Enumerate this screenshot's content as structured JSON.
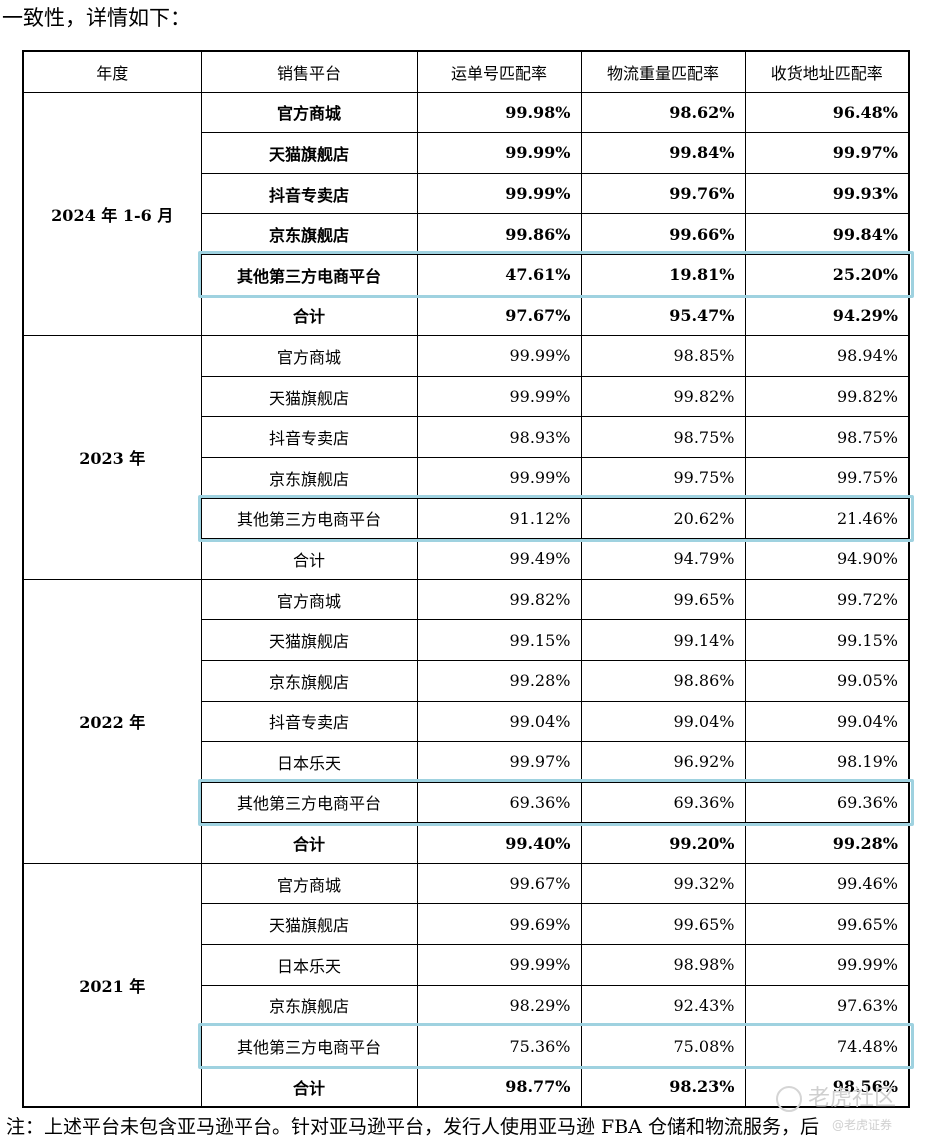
{
  "intro_text": "一致性，详情如下：",
  "headers": [
    "年度",
    "销售平台",
    "运单号匹配率",
    "物流重量匹配率",
    "收货地址匹配率"
  ],
  "groups": [
    {
      "year": "2024 年 1-6 月",
      "bold_all": true,
      "rows": [
        {
          "platform": "官方商城",
          "values": [
            "99.98%",
            "98.62%",
            "96.48%"
          ],
          "bold": true
        },
        {
          "platform": "天猫旗舰店",
          "values": [
            "99.99%",
            "99.84%",
            "99.97%"
          ],
          "bold": true
        },
        {
          "platform": "抖音专卖店",
          "values": [
            "99.99%",
            "99.76%",
            "99.93%"
          ],
          "bold": true
        },
        {
          "platform": "京东旗舰店",
          "values": [
            "99.86%",
            "99.66%",
            "99.84%"
          ],
          "bold": true
        },
        {
          "platform": "其他第三方电商平台",
          "values": [
            "47.61%",
            "19.81%",
            "25.20%"
          ],
          "bold": true,
          "highlight": true
        },
        {
          "platform": "合计",
          "values": [
            "97.67%",
            "95.47%",
            "94.29%"
          ],
          "bold": true
        }
      ]
    },
    {
      "year": "2023 年",
      "rows": [
        {
          "platform": "官方商城",
          "values": [
            "99.99%",
            "98.85%",
            "98.94%"
          ]
        },
        {
          "platform": "天猫旗舰店",
          "values": [
            "99.99%",
            "99.82%",
            "99.82%"
          ]
        },
        {
          "platform": "抖音专卖店",
          "values": [
            "98.93%",
            "98.75%",
            "98.75%"
          ]
        },
        {
          "platform": "京东旗舰店",
          "values": [
            "99.99%",
            "99.75%",
            "99.75%"
          ]
        },
        {
          "platform": "其他第三方电商平台",
          "values": [
            "91.12%",
            "20.62%",
            "21.46%"
          ],
          "highlight": true
        },
        {
          "platform": "合计",
          "values": [
            "99.49%",
            "94.79%",
            "94.90%"
          ]
        }
      ]
    },
    {
      "year": "2022 年",
      "rows": [
        {
          "platform": "官方商城",
          "values": [
            "99.82%",
            "99.65%",
            "99.72%"
          ]
        },
        {
          "platform": "天猫旗舰店",
          "values": [
            "99.15%",
            "99.14%",
            "99.15%"
          ]
        },
        {
          "platform": "京东旗舰店",
          "values": [
            "99.28%",
            "98.86%",
            "99.05%"
          ]
        },
        {
          "platform": "抖音专卖店",
          "values": [
            "99.04%",
            "99.04%",
            "99.04%"
          ]
        },
        {
          "platform": "日本乐天",
          "values": [
            "99.97%",
            "96.92%",
            "98.19%"
          ]
        },
        {
          "platform": "其他第三方电商平台",
          "values": [
            "69.36%",
            "69.36%",
            "69.36%"
          ],
          "highlight": true
        },
        {
          "platform": "合计",
          "values": [
            "99.40%",
            "99.20%",
            "99.28%"
          ],
          "bold": true
        }
      ]
    },
    {
      "year": "2021 年",
      "rows": [
        {
          "platform": "官方商城",
          "values": [
            "99.67%",
            "99.32%",
            "99.46%"
          ]
        },
        {
          "platform": "天猫旗舰店",
          "values": [
            "99.69%",
            "99.65%",
            "99.65%"
          ]
        },
        {
          "platform": "日本乐天",
          "values": [
            "99.99%",
            "98.98%",
            "99.99%"
          ]
        },
        {
          "platform": "京东旗舰店",
          "values": [
            "98.29%",
            "92.43%",
            "97.63%"
          ]
        },
        {
          "platform": "其他第三方电商平台",
          "values": [
            "75.36%",
            "75.08%",
            "74.48%"
          ],
          "highlight": true
        },
        {
          "platform": "合计",
          "values": [
            "98.77%",
            "98.23%",
            "98.56%"
          ],
          "bold": true
        }
      ]
    }
  ],
  "note": "注：上述平台未包含亚马逊平台。针对亚马逊平台，发行人使用亚马逊 FBA 仓储和物流服务，后",
  "watermark": "老虎社区",
  "watermark_small": "@老虎证券"
}
